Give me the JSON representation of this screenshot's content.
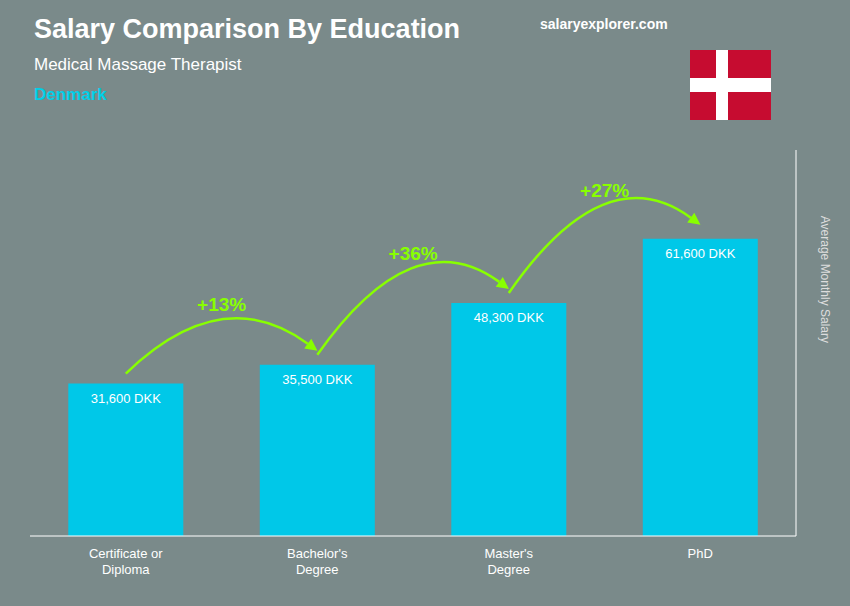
{
  "chart_data": {
    "type": "bar",
    "title": "Salary Comparison By Education",
    "subtitle": "Medical Massage Therapist",
    "annotations": [
      "Denmark",
      "salaryexplorer.com"
    ],
    "change_labels": [
      "+13%",
      "+36%",
      "+27%"
    ],
    "ylabel": "Average Monthly Salary",
    "categories": [
      "Certificate or\nDiploma",
      "Bachelor's\nDegree",
      "Master's\nDegree",
      "PhD"
    ],
    "values": [
      31600,
      35500,
      48300,
      61600
    ],
    "value_labels": [
      "31,600 DKK",
      "35,500 DKK",
      "48,300 DKK",
      "61,600 DKK"
    ],
    "data_labels": true,
    "color": "#00c8e8",
    "ylim": [
      0,
      80000
    ],
    "tick_labels": false,
    "grid": false
  }
}
